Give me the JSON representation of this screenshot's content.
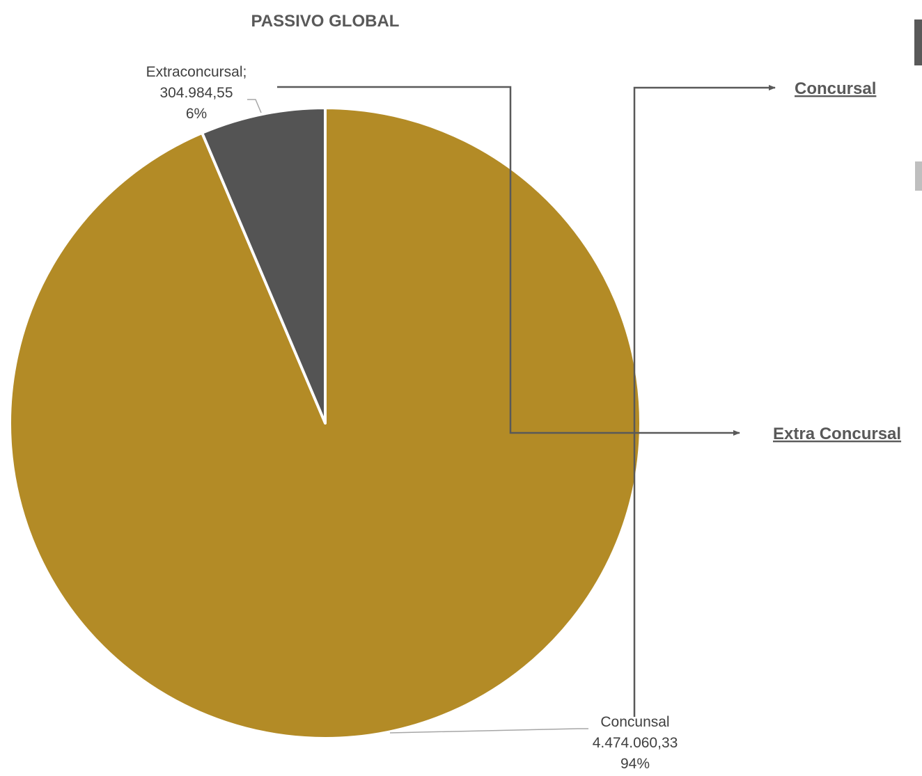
{
  "chart_data": {
    "type": "pie",
    "title": "PASSIVO GLOBAL",
    "slices": [
      {
        "name": "Concunsal",
        "value": 4474060.33,
        "value_text": "4.474.060,33",
        "percent_text": "94%",
        "color": "#B38B26"
      },
      {
        "name": "Extraconcursal;",
        "value": 304984.55,
        "value_text": "304.984,55",
        "percent_text": "6%",
        "color": "#545454"
      }
    ]
  },
  "links": {
    "concursal": "Concursal",
    "extra_concursal": "Extra Concursal"
  },
  "colors": {
    "connector": "#595959",
    "leader": "#A6A6A6",
    "slice_border": "#ffffff"
  }
}
